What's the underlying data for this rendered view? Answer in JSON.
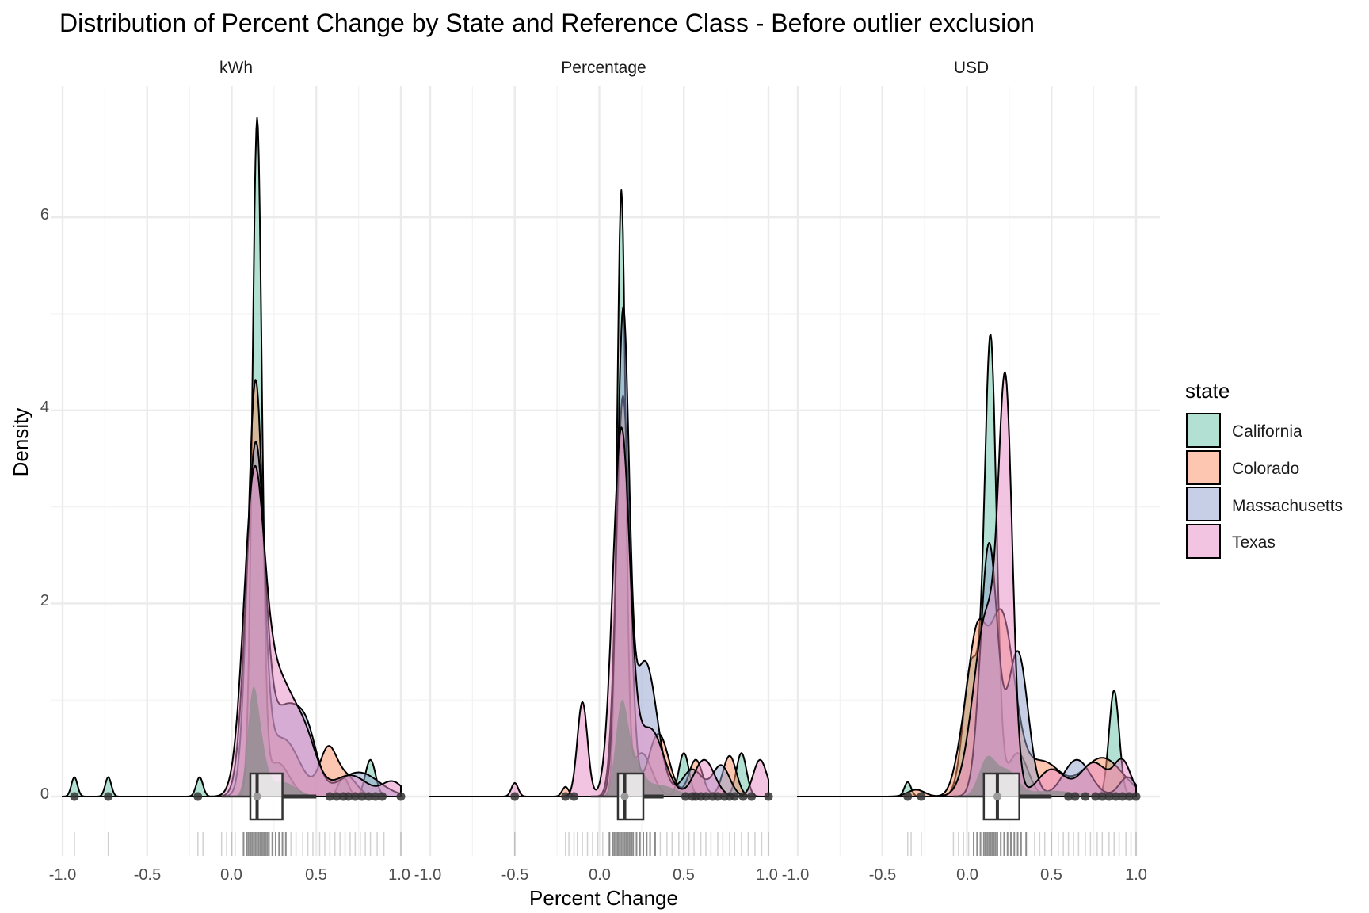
{
  "chart_data": {
    "type": "density",
    "title": "Distribution of Percent Change by State and Reference Class - Before outlier exclusion",
    "xlabel": "Percent Change",
    "ylabel": "Density",
    "xlim": [
      -1.0,
      1.0
    ],
    "ylim": [
      0,
      7
    ],
    "x_ticks": [
      -1.0,
      -0.5,
      0.0,
      0.5,
      1.0
    ],
    "x_tick_labels": [
      "-1.0",
      "-0.5",
      "0.0",
      "0.5",
      "1.0"
    ],
    "y_ticks": [
      0,
      2,
      4,
      6
    ],
    "y_tick_labels": [
      "0",
      "2",
      "4",
      "6"
    ],
    "legend": {
      "title": "state",
      "position": "right",
      "entries": [
        {
          "name": "California",
          "color": "#66C2A5"
        },
        {
          "name": "Colorado",
          "color": "#FC8D62"
        },
        {
          "name": "Massachusetts",
          "color": "#8DA0CB"
        },
        {
          "name": "Texas",
          "color": "#E78AC3"
        }
      ]
    },
    "fill_alpha": 0.5,
    "gray_color": "#8c8c8c",
    "facets": [
      {
        "label": "kWh",
        "series": [
          {
            "name": "California",
            "peaks": [
              [
                -0.93,
                0.2,
                0.018
              ],
              [
                -0.73,
                0.2,
                0.018
              ],
              [
                -0.19,
                0.2,
                0.02
              ],
              [
                0.15,
                6.95,
                0.028
              ],
              [
                0.27,
                0.35,
                0.07
              ],
              [
                0.66,
                0.2,
                0.03
              ],
              [
                0.82,
                0.38,
                0.03
              ]
            ]
          },
          {
            "name": "Colorado",
            "peaks": [
              [
                0.14,
                4.15,
                0.045
              ],
              [
                0.3,
                0.6,
                0.1
              ],
              [
                0.57,
                0.47,
                0.05
              ],
              [
                0.68,
                0.2,
                0.06
              ]
            ]
          },
          {
            "name": "Massachusetts",
            "peaks": [
              [
                0.14,
                3.55,
                0.055
              ],
              [
                0.32,
                0.9,
                0.09
              ],
              [
                0.45,
                0.45,
                0.06
              ],
              [
                0.75,
                0.25,
                0.12
              ]
            ]
          },
          {
            "name": "Texas",
            "peaks": [
              [
                0.13,
                2.95,
                0.06
              ],
              [
                0.27,
                1.2,
                0.1
              ],
              [
                0.44,
                0.45,
                0.07
              ],
              [
                0.7,
                0.22,
                0.1
              ],
              [
                0.95,
                0.15,
                0.06
              ]
            ]
          }
        ],
        "gray": [
          [
            0.12,
            0.75,
            0.03
          ],
          [
            0.16,
            0.55,
            0.04
          ],
          [
            0.3,
            0.15,
            0.08
          ]
        ],
        "boxplot": {
          "q1": 0.11,
          "median": 0.15,
          "q3": 0.3,
          "whisker_low": -0.06,
          "whisker_high": 0.5
        },
        "outliers": [
          -0.93,
          -0.73,
          -0.2,
          0.58,
          0.62,
          0.66,
          0.69,
          0.73,
          0.77,
          0.81,
          0.85,
          0.89,
          1.0
        ],
        "rug_sparse": [
          -0.93,
          -0.73,
          -0.2,
          -0.17,
          -0.06,
          -0.03,
          0.0,
          0.02,
          0.35,
          0.38,
          0.42,
          0.45,
          0.48,
          0.52,
          0.55,
          0.58,
          0.61,
          0.64,
          0.67,
          0.7,
          0.73,
          0.76,
          0.79,
          0.82,
          0.86,
          0.9,
          1.0
        ],
        "rug_dense": [
          0.07,
          0.09,
          0.1,
          0.11,
          0.12,
          0.13,
          0.14,
          0.15,
          0.16,
          0.17,
          0.18,
          0.19,
          0.2,
          0.21,
          0.22,
          0.24,
          0.26,
          0.28,
          0.3,
          0.32
        ]
      },
      {
        "label": "Percentage",
        "series": [
          {
            "name": "California",
            "peaks": [
              [
                0.13,
                6.22,
                0.025
              ],
              [
                0.25,
                0.45,
                0.06
              ],
              [
                0.5,
                0.45,
                0.03
              ],
              [
                0.84,
                0.45,
                0.03
              ]
            ]
          },
          {
            "name": "Colorado",
            "peaks": [
              [
                -0.2,
                0.1,
                0.02
              ],
              [
                0.14,
                4.15,
                0.04
              ],
              [
                0.35,
                0.65,
                0.06
              ],
              [
                0.57,
                0.38,
                0.04
              ],
              [
                0.77,
                0.42,
                0.04
              ]
            ]
          },
          {
            "name": "Massachusetts",
            "peaks": [
              [
                0.14,
                4.82,
                0.035
              ],
              [
                0.27,
                1.4,
                0.07
              ],
              [
                0.55,
                0.28,
                0.06
              ],
              [
                0.72,
                0.32,
                0.05
              ]
            ]
          },
          {
            "name": "Texas",
            "peaks": [
              [
                -0.5,
                0.14,
                0.02
              ],
              [
                -0.1,
                0.98,
                0.03
              ],
              [
                0.13,
                3.75,
                0.05
              ],
              [
                0.3,
                0.7,
                0.08
              ],
              [
                0.62,
                0.38,
                0.06
              ],
              [
                0.95,
                0.38,
                0.04
              ]
            ]
          }
        ],
        "gray": [
          [
            0.13,
            0.85,
            0.035
          ],
          [
            0.2,
            0.35,
            0.05
          ],
          [
            0.35,
            0.12,
            0.1
          ]
        ],
        "boxplot": {
          "q1": 0.11,
          "median": 0.15,
          "q3": 0.26,
          "whisker_low": -0.05,
          "whisker_high": 0.38
        },
        "outliers": [
          -0.5,
          -0.2,
          -0.15,
          0.51,
          0.55,
          0.57,
          0.6,
          0.63,
          0.67,
          0.7,
          0.74,
          0.77,
          0.8,
          0.85,
          0.9,
          1.0
        ],
        "rug_sparse": [
          -0.5,
          -0.2,
          -0.18,
          -0.15,
          -0.13,
          -0.1,
          -0.07,
          -0.04,
          -0.01,
          0.02,
          0.36,
          0.4,
          0.43,
          0.47,
          0.5,
          0.53,
          0.56,
          0.6,
          0.63,
          0.66,
          0.7,
          0.73,
          0.77,
          0.8,
          0.84,
          0.88,
          0.92,
          0.96,
          1.0
        ],
        "rug_dense": [
          0.06,
          0.08,
          0.09,
          0.1,
          0.11,
          0.12,
          0.13,
          0.14,
          0.15,
          0.16,
          0.17,
          0.18,
          0.19,
          0.2,
          0.22,
          0.24,
          0.26,
          0.28,
          0.3,
          0.33
        ]
      },
      {
        "label": "USD",
        "series": [
          {
            "name": "California",
            "peaks": [
              [
                -0.35,
                0.15,
                0.02
              ],
              [
                0.03,
                1.4,
                0.05
              ],
              [
                0.14,
                4.65,
                0.035
              ],
              [
                0.3,
                0.45,
                0.06
              ],
              [
                0.87,
                1.1,
                0.03
              ]
            ]
          },
          {
            "name": "Colorado",
            "peaks": [
              [
                -0.3,
                0.07,
                0.05
              ],
              [
                -0.02,
                0.5,
                0.05
              ],
              [
                0.06,
                1.25,
                0.05
              ],
              [
                0.2,
                1.9,
                0.08
              ],
              [
                0.45,
                0.35,
                0.1
              ],
              [
                0.8,
                0.4,
                0.12
              ]
            ]
          },
          {
            "name": "Massachusetts",
            "peaks": [
              [
                0.13,
                2.6,
                0.05
              ],
              [
                0.3,
                1.5,
                0.06
              ],
              [
                0.65,
                0.38,
                0.08
              ],
              [
                0.95,
                0.2,
                0.05
              ]
            ]
          },
          {
            "name": "Texas",
            "peaks": [
              [
                0.12,
                1.9,
                0.08
              ],
              [
                0.23,
                3.62,
                0.04
              ],
              [
                0.5,
                0.28,
                0.08
              ],
              [
                0.75,
                0.35,
                0.08
              ],
              [
                0.92,
                0.35,
                0.05
              ]
            ]
          }
        ],
        "gray": [
          [
            0.12,
            0.38,
            0.05
          ],
          [
            0.24,
            0.25,
            0.06
          ],
          [
            0.5,
            0.06,
            0.15
          ]
        ],
        "boxplot": {
          "q1": 0.1,
          "median": 0.18,
          "q3": 0.31,
          "whisker_low": -0.08,
          "whisker_high": 0.5
        },
        "outliers": [
          -0.35,
          -0.27,
          0.6,
          0.64,
          0.7,
          0.76,
          0.8,
          0.84,
          0.88,
          0.92,
          0.96,
          1.0
        ],
        "rug_sparse": [
          -0.35,
          -0.33,
          -0.27,
          -0.08,
          -0.05,
          -0.02,
          0.01,
          0.4,
          0.43,
          0.46,
          0.5,
          0.54,
          0.57,
          0.6,
          0.63,
          0.66,
          0.7,
          0.73,
          0.77,
          0.8,
          0.84,
          0.87,
          0.9,
          0.94,
          0.97,
          1.0
        ],
        "rug_dense": [
          0.04,
          0.06,
          0.08,
          0.1,
          0.11,
          0.12,
          0.13,
          0.14,
          0.15,
          0.16,
          0.17,
          0.18,
          0.2,
          0.22,
          0.24,
          0.26,
          0.28,
          0.3,
          0.32,
          0.35
        ]
      }
    ]
  }
}
